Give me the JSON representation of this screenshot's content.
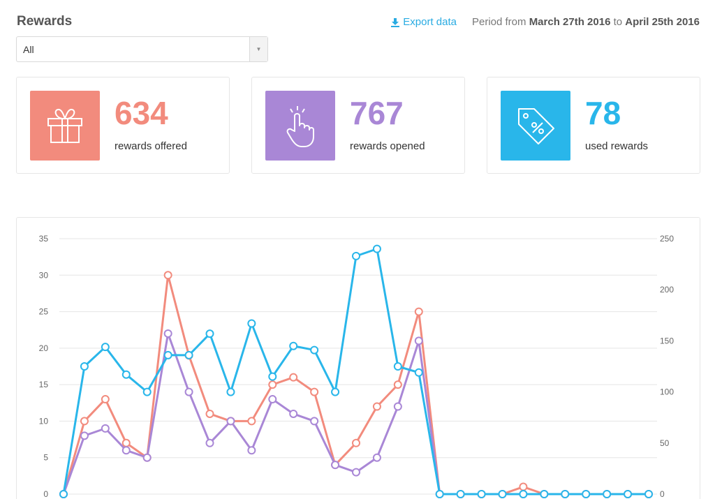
{
  "header": {
    "title": "Rewards",
    "export_label": "Export data",
    "period_prefix": "Period from ",
    "period_start": "March 27th 2016",
    "period_mid": " to ",
    "period_end": "April 25th 2016"
  },
  "filter": {
    "selected": "All"
  },
  "stats": [
    {
      "value": "634",
      "label": "rewards offered",
      "color": "#f28b7d",
      "icon": "gift-icon"
    },
    {
      "value": "767",
      "label": "rewards opened",
      "color": "#a987d6",
      "icon": "pointer-hand-icon"
    },
    {
      "value": "78",
      "label": "used rewards",
      "color": "#29b6ea",
      "icon": "discount-tag-icon"
    }
  ],
  "chart_data": {
    "type": "line",
    "left_axis": {
      "ticks": [
        0,
        5,
        10,
        15,
        20,
        25,
        30,
        35
      ],
      "ylim": [
        0,
        35
      ]
    },
    "right_axis": {
      "ticks": [
        0,
        50,
        100,
        150,
        200,
        250
      ],
      "ylim": [
        0,
        250
      ]
    },
    "grid": true,
    "series": [
      {
        "axis": "left",
        "color": "#f28b7d",
        "values": [
          0,
          10,
          13,
          7,
          5,
          30,
          19,
          11,
          10,
          10,
          15,
          16,
          14,
          4,
          7,
          12,
          15,
          25,
          0,
          0,
          0,
          0,
          1,
          0,
          0,
          0,
          0,
          0,
          0
        ]
      },
      {
        "axis": "left",
        "color": "#a987d6",
        "values": [
          0,
          8,
          9,
          6,
          5,
          22,
          14,
          7,
          10,
          6,
          13,
          11,
          10,
          4,
          3,
          5,
          12,
          21,
          0,
          0,
          0,
          0,
          0,
          0,
          0,
          0,
          0,
          0,
          0
        ]
      },
      {
        "axis": "right",
        "color": "#29b6ea",
        "values": [
          0,
          125,
          144,
          117,
          100,
          136,
          136,
          157,
          100,
          167,
          115,
          145,
          141,
          100,
          233,
          240,
          125,
          119,
          0,
          0,
          0,
          0,
          0,
          0,
          0,
          0,
          0,
          0,
          0
        ]
      }
    ]
  }
}
